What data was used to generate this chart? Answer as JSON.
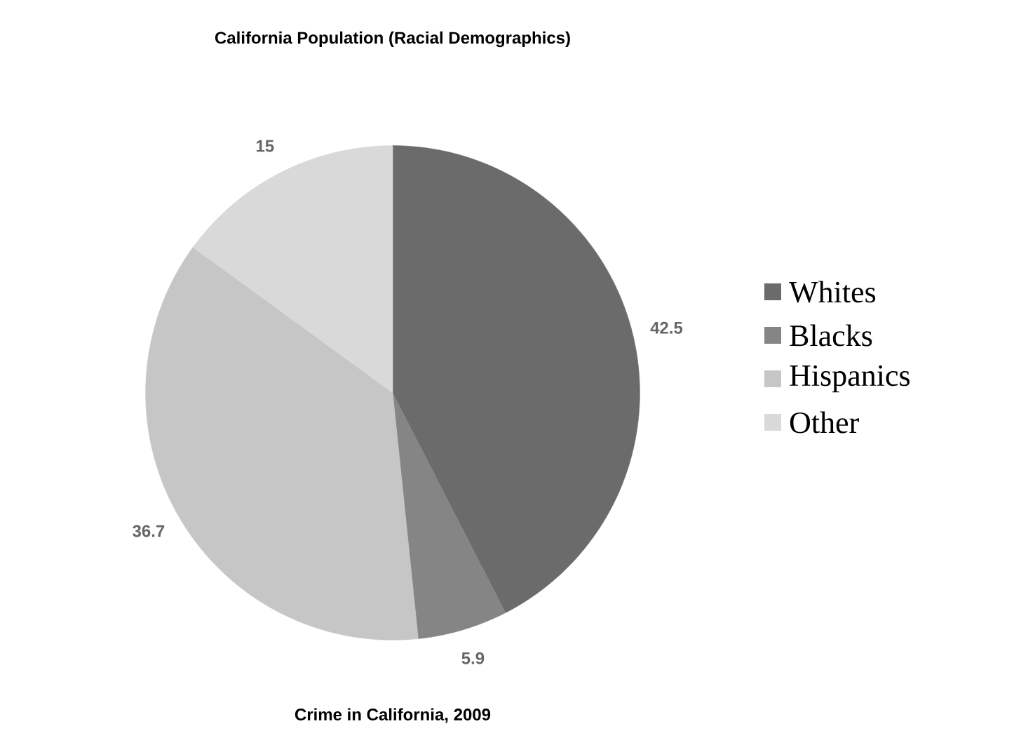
{
  "chart_data": {
    "type": "pie",
    "title": "California Population (Racial Demographics)",
    "categories": [
      "Whites",
      "Blacks",
      "Hispanics",
      "Other"
    ],
    "values": [
      42.5,
      5.9,
      36.7,
      15
    ],
    "colors": [
      "#6b6b6b",
      "#858585",
      "#c6c6c6",
      "#d9d9d9"
    ],
    "data_labels": true,
    "legend": "right",
    "annotations": [
      "Crime in California, 2009"
    ]
  }
}
